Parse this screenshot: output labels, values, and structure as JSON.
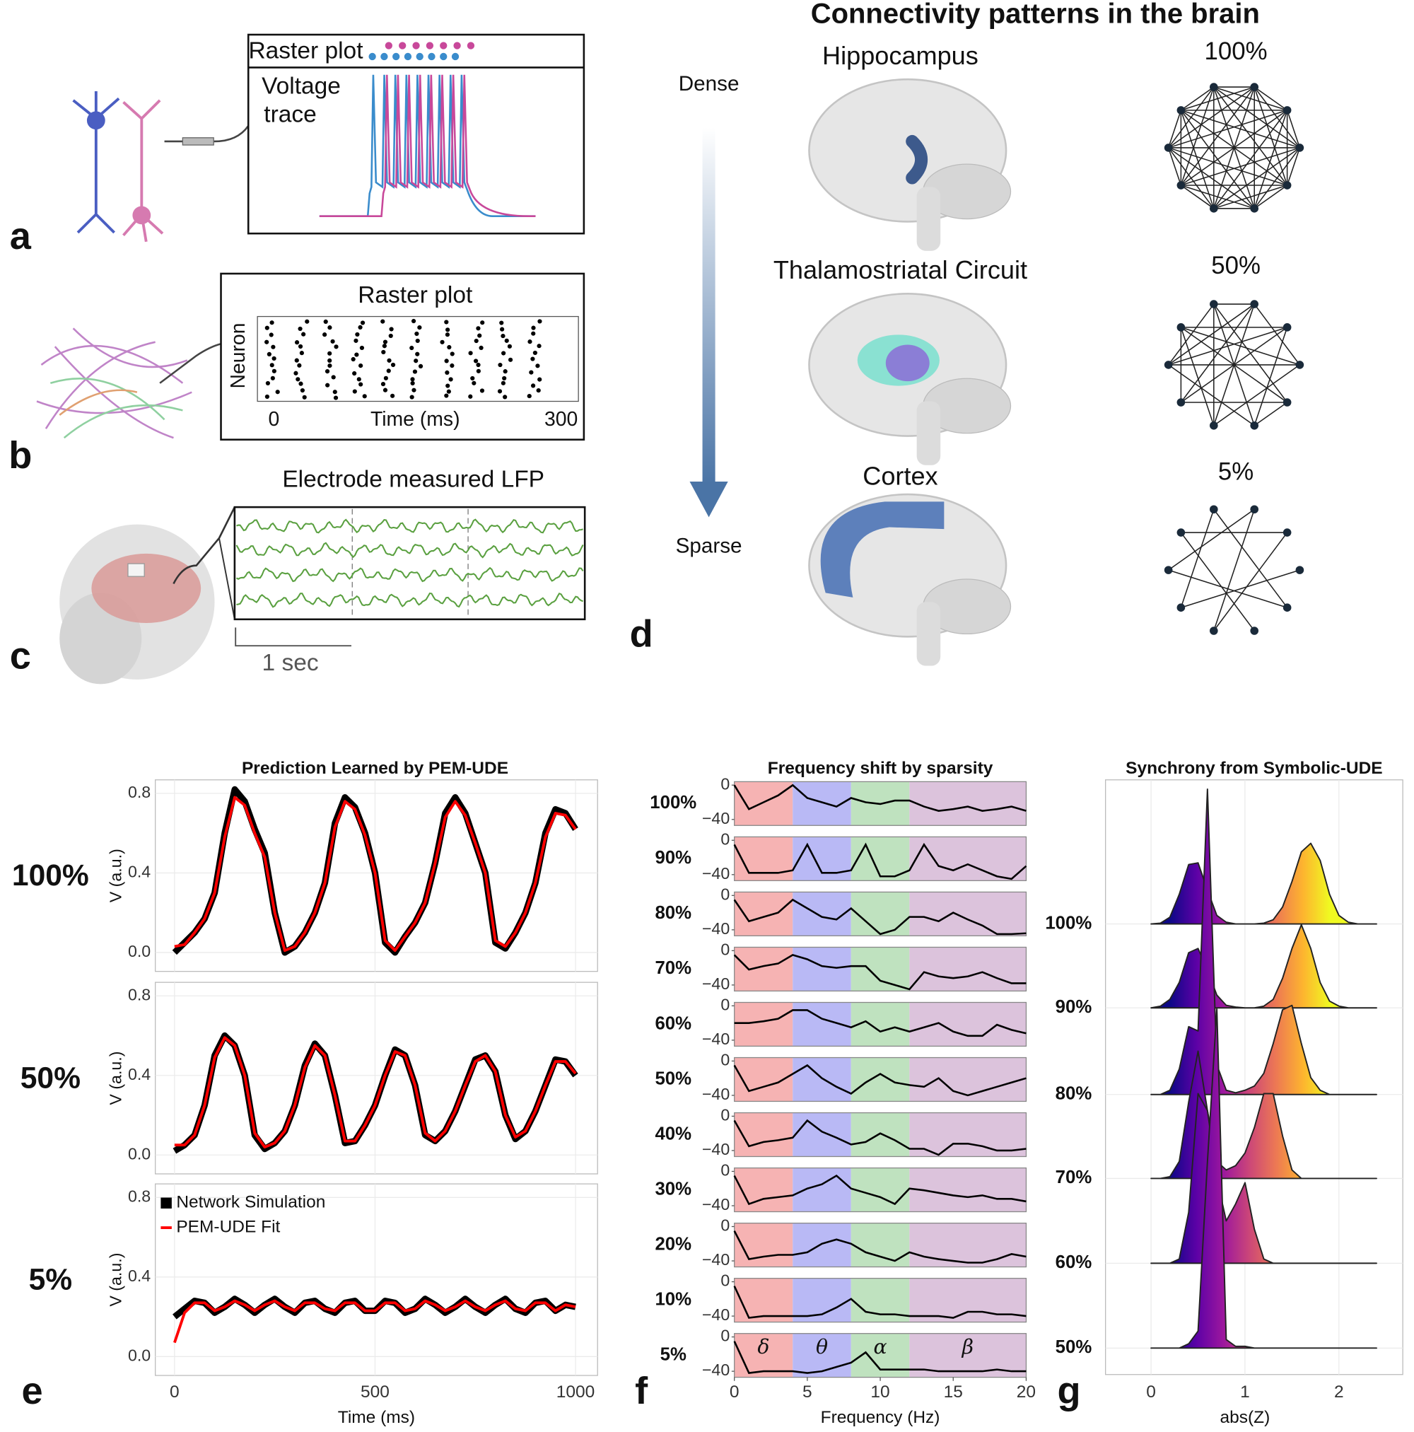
{
  "panel_labels": [
    "a",
    "b",
    "c",
    "d",
    "e",
    "f",
    "g"
  ],
  "panel_a": {
    "raster_title": "Raster plot",
    "trace_label": [
      "Voltage",
      "trace"
    ]
  },
  "panel_b": {
    "title": "Raster plot",
    "ylabel": "Neuron",
    "xlabel": "Time (ms)",
    "xlim": [
      0,
      300
    ]
  },
  "panel_c": {
    "title": "Electrode measured LFP",
    "scale_label": "1 sec"
  },
  "panel_d": {
    "title": "Connectivity patterns in the brain",
    "top_label": "Dense",
    "bottom_label": "Sparse",
    "regions": [
      {
        "name": "Hippocampus",
        "connectivity": "100%"
      },
      {
        "name": "Thalamostriatal Circuit",
        "connectivity": "50%"
      },
      {
        "name": "Cortex",
        "connectivity": "5%"
      }
    ]
  },
  "chart_data": [
    {
      "type": "line",
      "title": "Prediction Learned by PEM-UDE",
      "xlabel": "Time (ms)",
      "ylabel": "V (a.u.)",
      "xlim": [
        -48,
        1055
      ],
      "xticks": [
        0,
        500,
        1000
      ],
      "ylim": [
        -0.095,
        0.868
      ],
      "yticks": [
        {
          "value": 0,
          "label": "0.0"
        },
        0.4,
        0.8
      ],
      "grid": true,
      "legend": "upper left",
      "panels": [
        "100%",
        "50%",
        "5%"
      ],
      "x": [
        0,
        25,
        50,
        75,
        100,
        125,
        150,
        175,
        200,
        225,
        250,
        275,
        300,
        325,
        350,
        375,
        400,
        425,
        450,
        475,
        500,
        525,
        550,
        575,
        600,
        625,
        650,
        675,
        700,
        725,
        750,
        775,
        800,
        825,
        850,
        875,
        900,
        925,
        950,
        975,
        1000
      ],
      "series": [
        {
          "name": "Network Simulation",
          "color": "#000000",
          "values": [
            [
              0.0,
              0.05,
              0.1,
              0.17,
              0.3,
              0.6,
              0.82,
              0.76,
              0.62,
              0.5,
              0.2,
              0.0,
              0.03,
              0.1,
              0.2,
              0.35,
              0.65,
              0.78,
              0.73,
              0.6,
              0.4,
              0.05,
              0.0,
              0.08,
              0.15,
              0.25,
              0.45,
              0.7,
              0.78,
              0.7,
              0.55,
              0.4,
              0.05,
              0.02,
              0.1,
              0.2,
              0.35,
              0.6,
              0.72,
              0.7,
              0.62
            ],
            [
              0.02,
              0.05,
              0.1,
              0.25,
              0.5,
              0.6,
              0.55,
              0.4,
              0.1,
              0.03,
              0.06,
              0.12,
              0.25,
              0.45,
              0.56,
              0.5,
              0.3,
              0.06,
              0.07,
              0.15,
              0.25,
              0.4,
              0.53,
              0.5,
              0.35,
              0.1,
              0.07,
              0.12,
              0.22,
              0.35,
              0.48,
              0.5,
              0.42,
              0.2,
              0.08,
              0.12,
              0.22,
              0.35,
              0.48,
              0.47,
              0.4
            ],
            [
              0.2,
              0.24,
              0.28,
              0.27,
              0.22,
              0.25,
              0.29,
              0.26,
              0.22,
              0.26,
              0.29,
              0.25,
              0.22,
              0.27,
              0.28,
              0.24,
              0.22,
              0.27,
              0.28,
              0.23,
              0.23,
              0.28,
              0.27,
              0.22,
              0.24,
              0.29,
              0.26,
              0.22,
              0.25,
              0.29,
              0.25,
              0.22,
              0.26,
              0.29,
              0.24,
              0.22,
              0.27,
              0.28,
              0.23,
              0.26,
              0.25
            ]
          ]
        },
        {
          "name": "PEM-UDE Fit",
          "color": "#ff0000",
          "values": [
            [
              0.03,
              0.04,
              0.1,
              0.17,
              0.3,
              0.58,
              0.78,
              0.74,
              0.6,
              0.48,
              0.2,
              0.01,
              0.03,
              0.1,
              0.2,
              0.35,
              0.63,
              0.76,
              0.72,
              0.59,
              0.4,
              0.06,
              0.01,
              0.08,
              0.15,
              0.25,
              0.45,
              0.68,
              0.76,
              0.69,
              0.55,
              0.4,
              0.06,
              0.03,
              0.1,
              0.2,
              0.35,
              0.58,
              0.7,
              0.69,
              0.62
            ],
            [
              0.05,
              0.05,
              0.1,
              0.25,
              0.49,
              0.59,
              0.55,
              0.4,
              0.11,
              0.04,
              0.06,
              0.12,
              0.25,
              0.44,
              0.55,
              0.5,
              0.3,
              0.07,
              0.07,
              0.15,
              0.25,
              0.4,
              0.52,
              0.5,
              0.35,
              0.11,
              0.07,
              0.12,
              0.22,
              0.35,
              0.47,
              0.5,
              0.42,
              0.2,
              0.09,
              0.12,
              0.22,
              0.35,
              0.47,
              0.47,
              0.41
            ],
            [
              0.07,
              0.22,
              0.27,
              0.27,
              0.23,
              0.25,
              0.28,
              0.26,
              0.23,
              0.26,
              0.28,
              0.25,
              0.23,
              0.27,
              0.27,
              0.24,
              0.23,
              0.27,
              0.27,
              0.23,
              0.23,
              0.27,
              0.27,
              0.23,
              0.24,
              0.28,
              0.26,
              0.23,
              0.25,
              0.28,
              0.25,
              0.23,
              0.26,
              0.28,
              0.24,
              0.23,
              0.27,
              0.27,
              0.23,
              0.26,
              0.25
            ]
          ]
        }
      ]
    },
    {
      "type": "line",
      "title": "Frequency shift by sparsity",
      "xlabel": "Frequency (Hz)",
      "xlim": [
        0,
        20
      ],
      "xticks": [
        0,
        5,
        10,
        15,
        20
      ],
      "ylim": [
        -47,
        4
      ],
      "yticks": [
        0,
        {
          "value": -40,
          "label": "−40"
        }
      ],
      "color": "#000000",
      "bands": [
        {
          "label": "δ",
          "range": [
            0,
            4
          ],
          "color": "#f6b3b3"
        },
        {
          "label": "θ",
          "range": [
            4,
            8
          ],
          "color": "#b9b9f5"
        },
        {
          "label": "α",
          "range": [
            8,
            12
          ],
          "color": "#bfe2bf"
        },
        {
          "label": "β",
          "range": [
            12,
            20
          ],
          "color": "#dcc3dc"
        }
      ],
      "panels": [
        "100%",
        "90%",
        "80%",
        "70%",
        "60%",
        "50%",
        "40%",
        "30%",
        "20%",
        "10%",
        "5%"
      ],
      "x": [
        0,
        1,
        2,
        3,
        4,
        5,
        6,
        7,
        8,
        9,
        10,
        11,
        12,
        13,
        14,
        15,
        16,
        17,
        18,
        19,
        20
      ],
      "values": [
        [
          0,
          -28,
          -20,
          -12,
          0,
          -15,
          -20,
          -25,
          -15,
          -20,
          -22,
          -18,
          -18,
          -25,
          -30,
          -28,
          -25,
          -30,
          -28,
          -25,
          -30
        ],
        [
          -5,
          -38,
          -38,
          -38,
          -35,
          -5,
          -38,
          -38,
          -35,
          -5,
          -42,
          -42,
          -35,
          -5,
          -30,
          -35,
          -28,
          -35,
          -42,
          -45,
          -30
        ],
        [
          -5,
          -30,
          -25,
          -20,
          -5,
          -15,
          -25,
          -28,
          -15,
          -30,
          -45,
          -40,
          -25,
          -25,
          -30,
          -20,
          -28,
          -35,
          -45,
          -45,
          -44
        ],
        [
          -5,
          -22,
          -18,
          -15,
          -5,
          -10,
          -18,
          -20,
          -18,
          -18,
          -35,
          -40,
          -45,
          -25,
          -30,
          -32,
          -30,
          -25,
          -32,
          -38,
          -38
        ],
        [
          -20,
          -20,
          -18,
          -15,
          -5,
          -5,
          -15,
          -20,
          -25,
          -18,
          -30,
          -25,
          -30,
          -25,
          -20,
          -30,
          -35,
          -35,
          -22,
          -28,
          -32
        ],
        [
          -5,
          -35,
          -30,
          -25,
          -15,
          -5,
          -20,
          -30,
          -38,
          -25,
          -15,
          -25,
          -28,
          -30,
          -20,
          -35,
          -40,
          -35,
          -30,
          -25,
          -20
        ],
        [
          -5,
          -35,
          -30,
          -28,
          -25,
          -5,
          -18,
          -25,
          -33,
          -30,
          -20,
          -28,
          -38,
          -38,
          -45,
          -32,
          -32,
          -35,
          -40,
          -40,
          -38
        ],
        [
          -5,
          -38,
          -32,
          -30,
          -28,
          -20,
          -15,
          -5,
          -20,
          -25,
          -30,
          -38,
          -20,
          -22,
          -25,
          -28,
          -30,
          -28,
          -32,
          -32,
          -35
        ],
        [
          -5,
          -38,
          -35,
          -33,
          -33,
          -30,
          -20,
          -15,
          -20,
          -30,
          -35,
          -40,
          -30,
          -35,
          -38,
          -40,
          -42,
          -42,
          -38,
          -32,
          -35
        ],
        [
          -5,
          -42,
          -40,
          -40,
          -40,
          -40,
          -38,
          -30,
          -20,
          -35,
          -38,
          -38,
          -40,
          -40,
          -40,
          -42,
          -35,
          -35,
          -38,
          -38,
          -40
        ],
        [
          -5,
          -42,
          -40,
          -40,
          -40,
          -42,
          -40,
          -35,
          -30,
          -18,
          -38,
          -38,
          -38,
          -38,
          -40,
          -40,
          -40,
          -40,
          -38,
          -40,
          -40
        ]
      ]
    },
    {
      "type": "ridgeline",
      "title": "Synchrony from Symbolic-UDE",
      "xlabel": "abs(Z)",
      "xlim": [
        -0.485,
        2.68
      ],
      "xticks": [
        0,
        1,
        2
      ],
      "grid": true,
      "colormap": [
        "#0d0887",
        "#5c01a6",
        "#9c179e",
        "#cc4778",
        "#ed7953",
        "#fdb42f",
        "#f0f921"
      ],
      "categories": [
        "100%",
        "90%",
        "80%",
        "70%",
        "60%",
        "50%"
      ],
      "x": [
        0,
        0.1,
        0.2,
        0.3,
        0.4,
        0.5,
        0.6,
        0.7,
        0.8,
        0.9,
        1.0,
        1.1,
        1.2,
        1.3,
        1.4,
        1.5,
        1.6,
        1.7,
        1.8,
        1.9,
        2.0,
        2.1,
        2.2,
        2.3,
        2.4
      ],
      "values": [
        [
          0,
          0.01,
          0.08,
          0.35,
          0.7,
          0.72,
          0.4,
          0.1,
          0.02,
          0,
          0,
          0,
          0.01,
          0.05,
          0.2,
          0.5,
          0.85,
          0.95,
          0.75,
          0.35,
          0.1,
          0.02,
          0,
          0,
          0
        ],
        [
          0,
          0.02,
          0.1,
          0.3,
          0.65,
          0.7,
          0.45,
          0.15,
          0.03,
          0.01,
          0,
          0,
          0.02,
          0.1,
          0.35,
          0.7,
          0.98,
          0.7,
          0.3,
          0.08,
          0.02,
          0,
          0,
          0,
          0
        ],
        [
          0,
          0,
          0.05,
          0.3,
          0.8,
          0.75,
          3.6,
          0.35,
          0.05,
          0.02,
          0.05,
          0.1,
          0.25,
          0.6,
          1.0,
          1.05,
          0.6,
          0.2,
          0.05,
          0,
          0,
          0,
          0,
          0,
          0
        ],
        [
          0,
          0,
          0.02,
          0.2,
          0.9,
          1.5,
          0.8,
          0.2,
          0.1,
          0.15,
          0.3,
          0.6,
          1.0,
          1.0,
          0.5,
          0.1,
          0,
          0,
          0,
          0,
          0,
          0,
          0,
          0,
          0
        ],
        [
          0,
          0,
          0,
          0.05,
          0.6,
          2.0,
          1.8,
          1.0,
          0.5,
          0.7,
          0.95,
          0.4,
          0.05,
          0,
          0,
          0,
          0,
          0,
          0,
          0,
          0,
          0,
          0,
          0,
          0
        ],
        [
          0,
          0,
          0,
          0,
          0.05,
          0.2,
          2.2,
          4.0,
          0.1,
          0.02,
          0.02,
          0,
          0,
          0,
          0,
          0,
          0,
          0,
          0,
          0,
          0,
          0,
          0,
          0,
          0
        ]
      ]
    }
  ]
}
